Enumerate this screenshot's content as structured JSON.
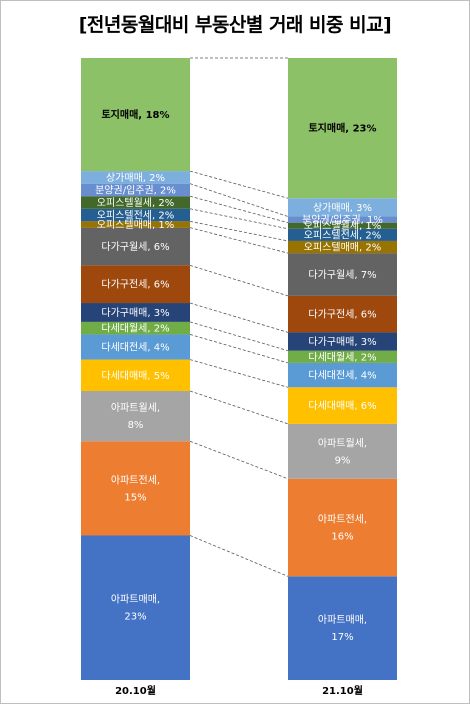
{
  "title": "[전년동월대비 부동산별 거래 비중 비교]",
  "chart_data": {
    "type": "stacked-bar",
    "stack_order": "bottom-to-top",
    "categories": [
      "20.10월",
      "21.10월"
    ],
    "value_unit": "%",
    "series": [
      {
        "name": "아파트매매",
        "values": [
          23,
          17
        ],
        "color": "#4472C4"
      },
      {
        "name": "아파트전세",
        "values": [
          15,
          16
        ],
        "color": "#ED7D31"
      },
      {
        "name": "아파트월세",
        "values": [
          8,
          9
        ],
        "color": "#A5A5A5"
      },
      {
        "name": "다세대매매",
        "values": [
          5,
          6
        ],
        "color": "#FFC000"
      },
      {
        "name": "다세대전세",
        "values": [
          4,
          4
        ],
        "color": "#5B9BD5"
      },
      {
        "name": "다세대월세",
        "values": [
          2,
          2
        ],
        "color": "#70AD47"
      },
      {
        "name": "다가구매매",
        "values": [
          3,
          3
        ],
        "color": "#264478"
      },
      {
        "name": "다가구전세",
        "values": [
          6,
          6
        ],
        "color": "#9E480E"
      },
      {
        "name": "다가구월세",
        "values": [
          6,
          7
        ],
        "color": "#636363"
      },
      {
        "name": "오피스텔매매",
        "values": [
          1,
          2
        ],
        "color": "#997300"
      },
      {
        "name": "오피스텔전세",
        "values": [
          2,
          2
        ],
        "color": "#255E91"
      },
      {
        "name": "오피스텔월세",
        "values": [
          2,
          1
        ],
        "color": "#43682B"
      },
      {
        "name": "분양권/입주권",
        "values": [
          2,
          1
        ],
        "color": "#698ED0"
      },
      {
        "name": "상가매매",
        "values": [
          2,
          3
        ],
        "color": "#7CAFDD"
      },
      {
        "name": "토지매매",
        "values": [
          18,
          23
        ],
        "color": "#8CC168"
      }
    ],
    "legend": "none",
    "connector_lines": "dashed"
  }
}
